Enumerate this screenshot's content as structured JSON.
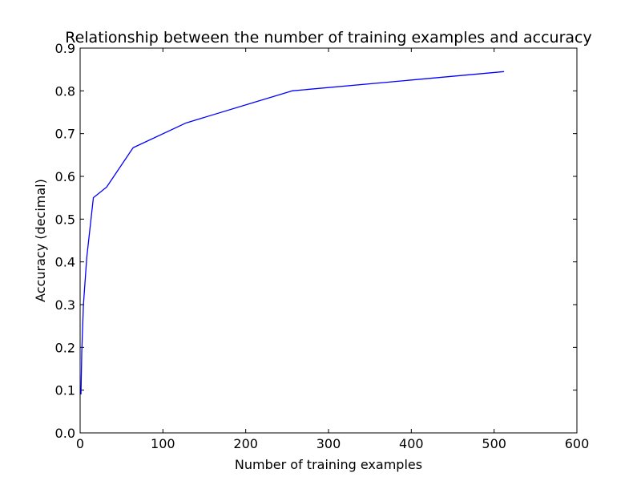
{
  "chart_data": {
    "type": "line",
    "title": "Relationship between the number of training examples and accuracy",
    "xlabel": "Number of training examples",
    "ylabel": "Accuracy (decimal)",
    "xlim": [
      0,
      600
    ],
    "ylim": [
      0,
      0.9
    ],
    "xticks": [
      "0",
      "100",
      "200",
      "300",
      "400",
      "500",
      "600"
    ],
    "yticks": [
      "0.0",
      "0.1",
      "0.2",
      "0.3",
      "0.4",
      "0.5",
      "0.6",
      "0.7",
      "0.8",
      "0.9"
    ],
    "grid": false,
    "series": [
      {
        "color": "#0000ff",
        "x": [
          1,
          2,
          4,
          8,
          16,
          32,
          64,
          128,
          256,
          512
        ],
        "y": [
          0.09,
          0.19,
          0.3,
          0.41,
          0.55,
          0.575,
          0.667,
          0.725,
          0.8,
          0.845
        ]
      }
    ]
  }
}
